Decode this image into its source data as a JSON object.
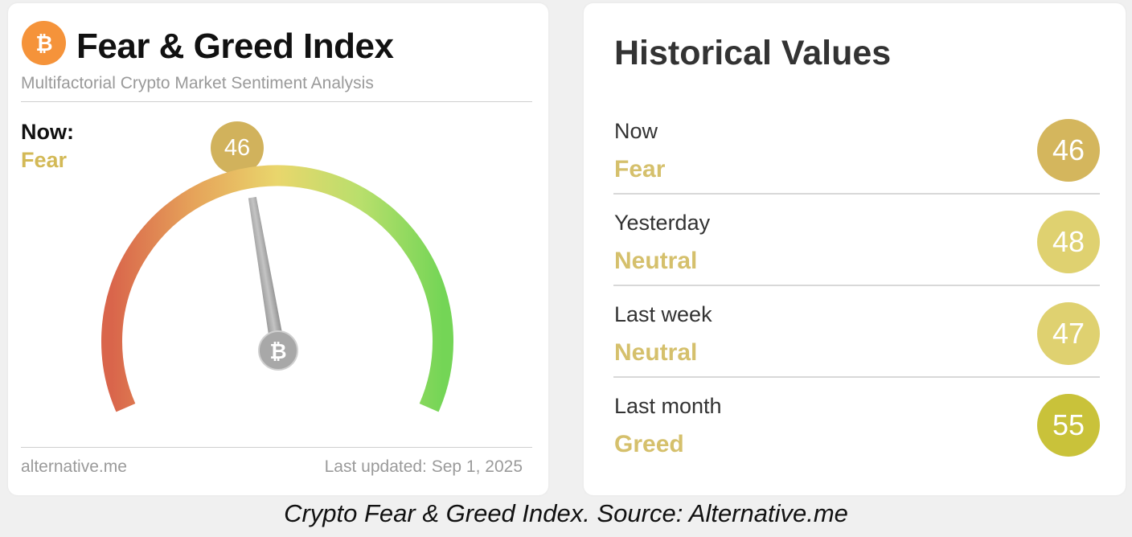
{
  "left_card": {
    "title": "Fear & Greed Index",
    "subtitle": "Multifactorial Crypto Market Sentiment Analysis",
    "now_label": "Now:",
    "now_classification": "Fear",
    "value": "46",
    "gauge_value": 46,
    "gauge_max": 100,
    "source": "alternative.me",
    "last_updated": "Last updated: Sep 1, 2025",
    "logo_icon": "bitcoin-icon",
    "colors": {
      "brand_orange": "#f5933a",
      "badge_fear": "#d1b25c",
      "fear_text": "#d3b956",
      "gauge_start": "#d9654b",
      "gauge_mid": "#e5d869",
      "gauge_end": "#7ad85a"
    }
  },
  "historical": {
    "title": "Historical Values",
    "rows": [
      {
        "period": "Now",
        "classification": "Fear",
        "value": "46",
        "color": "#d4b65d"
      },
      {
        "period": "Yesterday",
        "classification": "Neutral",
        "value": "48",
        "color": "#dfd170"
      },
      {
        "period": "Last week",
        "classification": "Neutral",
        "value": "47",
        "color": "#dfd170"
      },
      {
        "period": "Last month",
        "classification": "Greed",
        "value": "55",
        "color": "#c9c23a"
      }
    ]
  },
  "caption": "Crypto Fear & Greed Index. Source: Alternative.me"
}
